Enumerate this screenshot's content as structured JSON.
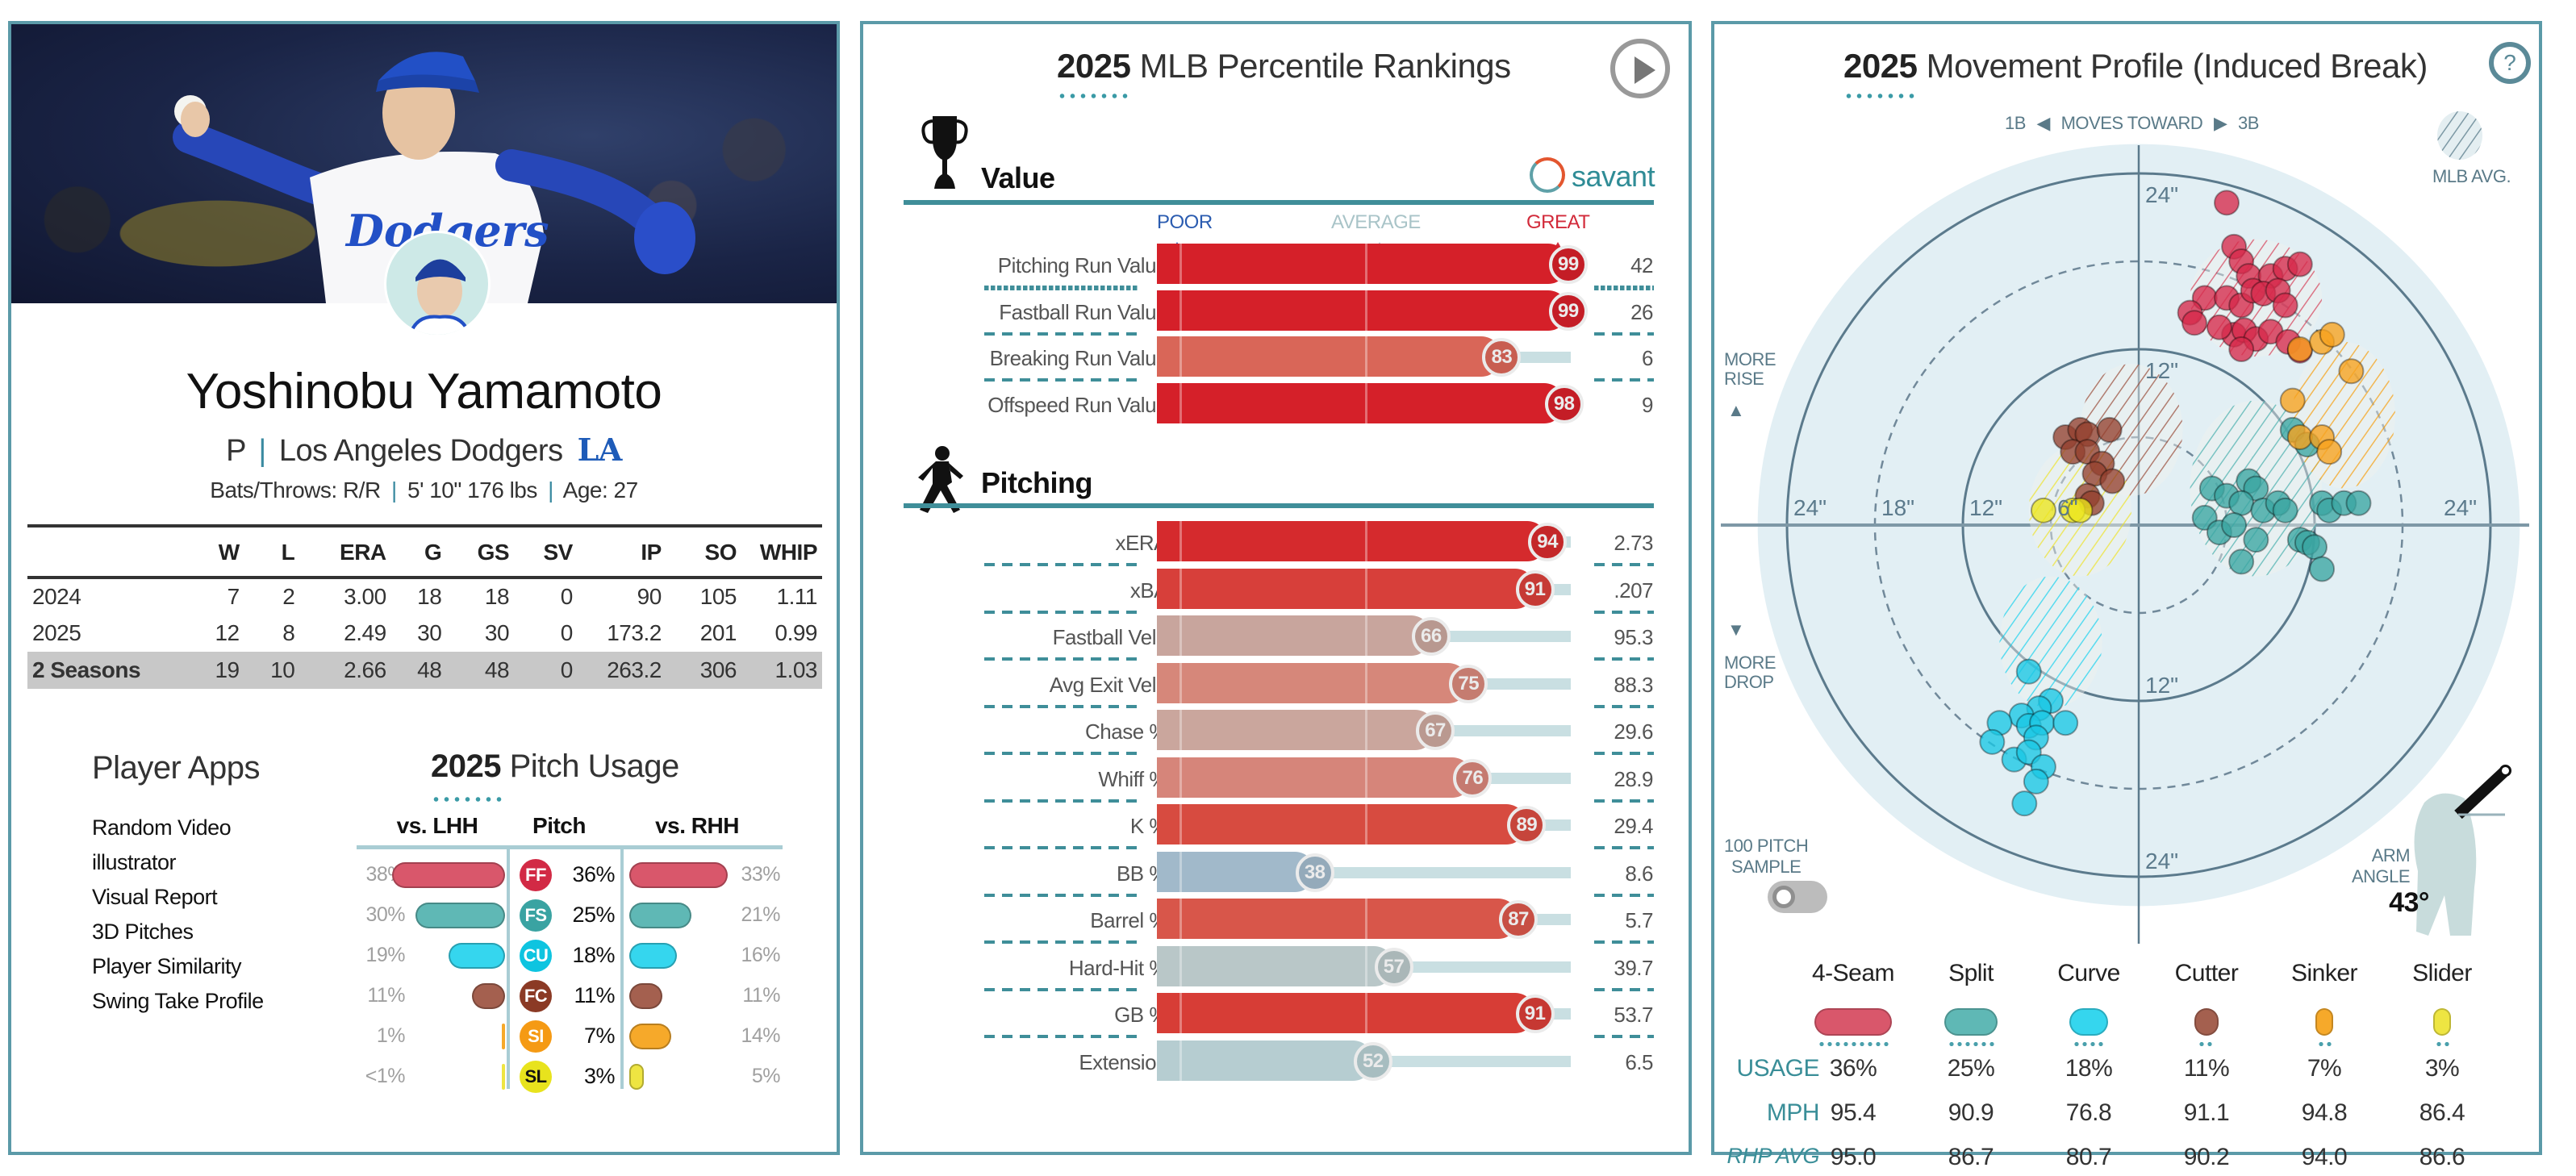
{
  "player": {
    "name": "Yoshinobu Yamamoto",
    "position": "P",
    "team": "Los Angeles Dodgers",
    "team_logo": "LA",
    "bats_throws": "Bats/Throws: R/R",
    "height_weight": "5' 10\" 176 lbs",
    "age": "Age: 27",
    "jersey_text": "Dodgers",
    "sep": "|"
  },
  "stats_table": {
    "headers": [
      "",
      "W",
      "L",
      "ERA",
      "G",
      "GS",
      "SV",
      "IP",
      "SO",
      "WHIP"
    ],
    "rows": [
      [
        "2024",
        "7",
        "2",
        "3.00",
        "18",
        "18",
        "0",
        "90",
        "105",
        "1.11"
      ],
      [
        "2025",
        "12",
        "8",
        "2.49",
        "30",
        "30",
        "0",
        "173.2",
        "201",
        "0.99"
      ],
      [
        "2 Seasons",
        "19",
        "10",
        "2.66",
        "48",
        "48",
        "0",
        "263.2",
        "306",
        "1.03"
      ]
    ]
  },
  "player_apps": {
    "title": "Player Apps",
    "items": [
      "Random Video",
      "illustrator",
      "Visual Report",
      "3D Pitches",
      "Player Similarity",
      "Swing Take Profile"
    ]
  },
  "pitch_usage": {
    "title_year": "2025",
    "title_rest": " Pitch Usage",
    "col_lhh": "vs. LHH",
    "col_pitch": "Pitch",
    "col_rhh": "vs. RHH",
    "rows": [
      {
        "code": "FF",
        "lhh": "38%",
        "lhh_val": 38,
        "pct": "36%",
        "rhh": "33%",
        "rhh_val": 33,
        "color": "#d9576b"
      },
      {
        "code": "FS",
        "lhh": "30%",
        "lhh_val": 30,
        "pct": "25%",
        "rhh": "21%",
        "rhh_val": 21,
        "color": "#5fb8b5"
      },
      {
        "code": "CU",
        "lhh": "19%",
        "lhh_val": 19,
        "pct": "18%",
        "rhh": "16%",
        "rhh_val": 16,
        "color": "#35d6ee"
      },
      {
        "code": "FC",
        "lhh": "11%",
        "lhh_val": 11,
        "pct": "11%",
        "rhh": "11%",
        "rhh_val": 11,
        "color": "#a4604f"
      },
      {
        "code": "SI",
        "lhh": "1%",
        "lhh_val": 1,
        "pct": "7%",
        "rhh": "14%",
        "rhh_val": 14,
        "color": "#f6a92a"
      },
      {
        "code": "SL",
        "lhh": "<1%",
        "lhh_val": 0.5,
        "pct": "3%",
        "rhh": "5%",
        "rhh_val": 5,
        "color": "#eee542"
      }
    ],
    "badge_colors": {
      "FF": "#d22a45",
      "FS": "#3aa3a2",
      "CU": "#0ec4e0",
      "FC": "#8b3a25",
      "SI": "#f59a14",
      "SL": "#e8e31d"
    }
  },
  "percentiles": {
    "title_year": "2025",
    "title_rest": " MLB Percentile Rankings",
    "scale": {
      "poor": "POOR",
      "average": "AVERAGE",
      "great": "GREAT"
    },
    "colors": {
      "poor": "#2b5cb0",
      "average": "#a9c4c8",
      "great": "#d22a3a"
    },
    "brand": "savant",
    "sections": [
      {
        "name": "Value",
        "icon": "trophy-icon",
        "rows": [
          {
            "label": "Pitching Run Value",
            "pct": 99,
            "value": "42",
            "color": "#d52029"
          },
          {
            "label": "Fastball Run Value",
            "pct": 99,
            "value": "26",
            "color": "#d52029"
          },
          {
            "label": "Breaking Run Value",
            "pct": 83,
            "value": "6",
            "color": "#d96658"
          },
          {
            "label": "Offspeed Run Value",
            "pct": 98,
            "value": "9",
            "color": "#d52029"
          }
        ]
      },
      {
        "name": "Pitching",
        "icon": "pitcher-icon",
        "rows": [
          {
            "label": "xERA",
            "pct": 94,
            "value": "2.73",
            "color": "#d52a2d"
          },
          {
            "label": "xBA",
            "pct": 91,
            "value": ".207",
            "color": "#d73f3a"
          },
          {
            "label": "Fastball Velo",
            "pct": 66,
            "value": "95.3",
            "color": "#c8a59d"
          },
          {
            "label": "Avg Exit Velo",
            "pct": 75,
            "value": "88.3",
            "color": "#d6877a"
          },
          {
            "label": "Chase %",
            "pct": 67,
            "value": "29.6",
            "color": "#caa69d"
          },
          {
            "label": "Whiff %",
            "pct": 76,
            "value": "28.9",
            "color": "#d6857a"
          },
          {
            "label": "K %",
            "pct": 89,
            "value": "29.4",
            "color": "#d74b40"
          },
          {
            "label": "BB %",
            "pct": 38,
            "value": "8.6",
            "color": "#a1b9ca"
          },
          {
            "label": "Barrel %",
            "pct": 87,
            "value": "5.7",
            "color": "#d8564a"
          },
          {
            "label": "Hard-Hit %",
            "pct": 57,
            "value": "39.7",
            "color": "#b9c7c8"
          },
          {
            "label": "GB %",
            "pct": 91,
            "value": "53.7",
            "color": "#d73d36"
          },
          {
            "label": "Extension",
            "pct": 52,
            "value": "6.5",
            "color": "#b6cdd1"
          }
        ]
      }
    ]
  },
  "movement": {
    "title_year": "2025",
    "title_rest": " Movement Profile (Induced Break)",
    "direction_label_left": "1B",
    "direction_label_mid": "MOVES TOWARD",
    "direction_label_right": "3B",
    "mlb_avg_label": "MLB AVG.",
    "more_rise": "MORE\nRISE",
    "more_drop": "MORE\nDROP",
    "sample_label": "100 PITCH\nSAMPLE",
    "sample_toggle_on": false,
    "arm_angle_label": "ARM\nANGLE",
    "arm_angle_value": "43°",
    "arm_angle_deg": 43,
    "ring_labels_top": [
      "24\"",
      "12\""
    ],
    "ring_labels_bottom": [
      "12\"",
      "24\""
    ],
    "ring_labels_left": [
      "24\"",
      "18\"",
      "12\"",
      "6\""
    ],
    "ring_labels_right": [
      "24\""
    ],
    "row_labels": {
      "usage": "USAGE",
      "mph": "MPH",
      "rhp_avg": "RHP AVG"
    },
    "pitches": [
      {
        "name": "4-Seam",
        "usage": "36%",
        "usage_val": 36,
        "mph": "95.4",
        "rhp_avg": "95.0",
        "color": "#d9576b",
        "dot": "#d6294a"
      },
      {
        "name": "Split",
        "usage": "25%",
        "usage_val": 25,
        "mph": "90.9",
        "rhp_avg": "86.7",
        "color": "#5fb8b5",
        "dot": "#3aa5a2"
      },
      {
        "name": "Curve",
        "usage": "18%",
        "usage_val": 18,
        "mph": "76.8",
        "rhp_avg": "80.7",
        "color": "#35d6ee",
        "dot": "#18c6e4"
      },
      {
        "name": "Cutter",
        "usage": "11%",
        "usage_val": 11,
        "mph": "91.1",
        "rhp_avg": "90.2",
        "color": "#a4604f",
        "dot": "#94402e"
      },
      {
        "name": "Sinker",
        "usage": "7%",
        "usage_val": 7,
        "mph": "94.8",
        "rhp_avg": "94.0",
        "color": "#f6a92a",
        "dot": "#f7a21c"
      },
      {
        "name": "Slider",
        "usage": "3%",
        "usage_val": 3,
        "mph": "86.4",
        "rhp_avg": "86.6",
        "color": "#eee542",
        "dot": "#ece51e"
      }
    ],
    "chart_data": {
      "type": "scatter",
      "title": "2025 Movement Profile (Induced Break)",
      "xlabel": "Horizontal break (in), 1B ◀ moves toward ▶ 3B",
      "ylabel": "Induced vertical break (in), more rise ▲ / more drop ▼",
      "xlim": [
        -26,
        26
      ],
      "ylim": [
        -26,
        26
      ],
      "rings": [
        6,
        12,
        18,
        24
      ],
      "mlb_avg_ellipses": [
        {
          "pitch": "4-Seam",
          "cx": 8,
          "cy": 15.5,
          "rx": 4.5,
          "ry": 4
        },
        {
          "pitch": "Split",
          "cx": 8,
          "cy": 2.5,
          "rx": 4.5,
          "ry": 6
        },
        {
          "pitch": "Curve",
          "cx": -6,
          "cy": -8,
          "rx": 3.5,
          "ry": 4.5
        },
        {
          "pitch": "Cutter",
          "cx": -0.5,
          "cy": 6.5,
          "rx": 3.5,
          "ry": 4.5
        },
        {
          "pitch": "Sinker",
          "cx": 14,
          "cy": 7.5,
          "rx": 3.5,
          "ry": 5
        },
        {
          "pitch": "Slider",
          "cx": -4,
          "cy": 1,
          "rx": 3.5,
          "ry": 4.5
        }
      ],
      "series": [
        {
          "name": "4-Seam",
          "points": [
            [
              6,
              22
            ],
            [
              6.5,
              19
            ],
            [
              7,
              18
            ],
            [
              7.5,
              17
            ],
            [
              9,
              17
            ],
            [
              10,
              17.5
            ],
            [
              11,
              17.8
            ],
            [
              4.5,
              15.5
            ],
            [
              3.5,
              14.5
            ],
            [
              3.8,
              13.8
            ],
            [
              6,
              15.5
            ],
            [
              7,
              15
            ],
            [
              7.8,
              16
            ],
            [
              8.5,
              15.8
            ],
            [
              9.5,
              16
            ],
            [
              10,
              15
            ],
            [
              6.5,
              13
            ],
            [
              7.2,
              13.3
            ],
            [
              8,
              12.7
            ],
            [
              9,
              13.2
            ],
            [
              10.2,
              12.5
            ],
            [
              5.5,
              13.5
            ],
            [
              11,
              11.9
            ],
            [
              7,
              12
            ]
          ]
        },
        {
          "name": "Split",
          "points": [
            [
              10.5,
              6.5
            ],
            [
              11.5,
              5.5
            ],
            [
              5,
              2.5
            ],
            [
              7.5,
              3
            ],
            [
              8,
              2.5
            ],
            [
              6,
              2
            ],
            [
              7,
              1.5
            ],
            [
              8.5,
              1
            ],
            [
              9.5,
              1.5
            ],
            [
              10,
              1
            ],
            [
              12.5,
              1.5
            ],
            [
              13,
              1
            ],
            [
              14,
              1.5
            ],
            [
              15,
              1.5
            ],
            [
              4.5,
              0.5
            ],
            [
              5.5,
              -0.5
            ],
            [
              6.5,
              0
            ],
            [
              8,
              -1
            ],
            [
              11,
              -1
            ],
            [
              11.5,
              -1.2
            ],
            [
              12,
              -1.5
            ],
            [
              7,
              -2.5
            ],
            [
              12.5,
              -3
            ]
          ]
        },
        {
          "name": "Curve",
          "points": [
            [
              -7.5,
              -10
            ],
            [
              -6,
              -12
            ],
            [
              -6.8,
              -12.5
            ],
            [
              -8,
              -13
            ],
            [
              -9.5,
              -13.5
            ],
            [
              -7.5,
              -13.7
            ],
            [
              -6.6,
              -13.5
            ],
            [
              -5,
              -13.5
            ],
            [
              -10,
              -14.8
            ],
            [
              -8.5,
              -16
            ],
            [
              -7,
              -14.5
            ],
            [
              -7.5,
              -15.5
            ],
            [
              -6.5,
              -16.5
            ],
            [
              -7,
              -17.5
            ],
            [
              -7.8,
              -19
            ]
          ]
        },
        {
          "name": "Cutter",
          "points": [
            [
              -5,
              6
            ],
            [
              -4,
              6.5
            ],
            [
              -3.5,
              6.2
            ],
            [
              -2,
              6.5
            ],
            [
              -4.5,
              5
            ],
            [
              -3.5,
              5
            ],
            [
              -2.5,
              4.2
            ],
            [
              -3,
              3.5
            ],
            [
              -1.8,
              3
            ],
            [
              -3.5,
              2
            ],
            [
              -3.2,
              1.5
            ]
          ]
        },
        {
          "name": "Sinker",
          "points": [
            [
              11,
              12
            ],
            [
              12.5,
              12.5
            ],
            [
              13.2,
              13
            ],
            [
              14.5,
              10.5
            ],
            [
              10.5,
              8.5
            ],
            [
              11,
              6
            ],
            [
              12.5,
              6
            ],
            [
              13,
              5
            ]
          ]
        },
        {
          "name": "Slider",
          "points": [
            [
              -6.5,
              1
            ],
            [
              -4.5,
              1
            ],
            [
              -4,
              1
            ]
          ]
        }
      ]
    }
  }
}
